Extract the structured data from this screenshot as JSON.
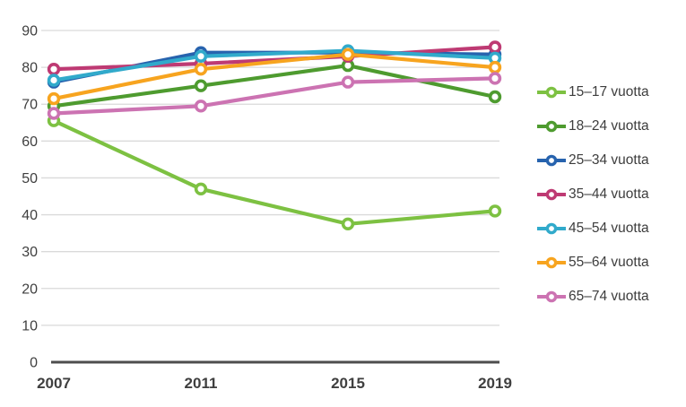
{
  "chart_data": {
    "type": "line",
    "title": "",
    "xlabel": "",
    "ylabel": "",
    "x": [
      "2007",
      "2011",
      "2015",
      "2019"
    ],
    "ylim": [
      0,
      90
    ],
    "yticks": [
      0,
      10,
      20,
      30,
      40,
      50,
      60,
      70,
      80,
      90
    ],
    "grid": true,
    "legend_position": "right",
    "series": [
      {
        "name": "15–17 vuotta",
        "color": "#7DC142",
        "values": [
          65.5,
          47,
          37.5,
          41
        ]
      },
      {
        "name": "18–24 vuotta",
        "color": "#4E9B2F",
        "values": [
          69.5,
          75,
          80.5,
          72
        ]
      },
      {
        "name": "25–34 vuotta",
        "color": "#2763AE",
        "values": [
          76,
          84,
          84,
          83.5
        ]
      },
      {
        "name": "35–44 vuotta",
        "color": "#BE3A73",
        "values": [
          79.5,
          81,
          83,
          85.5
        ]
      },
      {
        "name": "45–54 vuotta",
        "color": "#31AACB",
        "values": [
          76.5,
          83,
          84.5,
          82.5
        ]
      },
      {
        "name": "55–64 vuotta",
        "color": "#F7A41F",
        "values": [
          71.5,
          79.5,
          83.5,
          80
        ]
      },
      {
        "name": "65–74 vuotta",
        "color": "#CC73B2",
        "values": [
          67.5,
          69.5,
          76,
          77
        ]
      }
    ]
  },
  "colors": {
    "grid": "#DADADA",
    "axis_line": "#4D4D4D",
    "tick_label": "#3F3F3F",
    "legend_text": "#3D3D3D",
    "background": "#FFFFFF"
  }
}
